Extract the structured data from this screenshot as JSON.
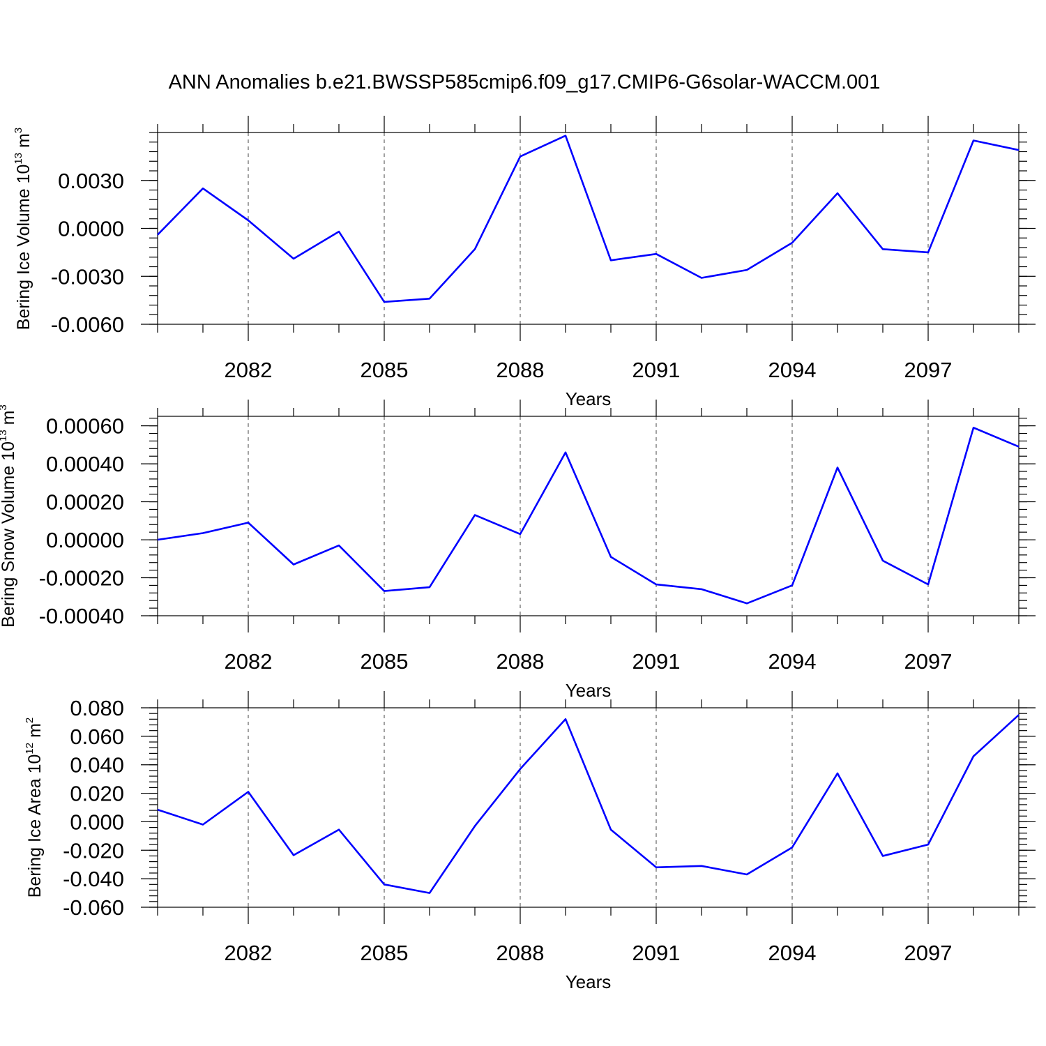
{
  "title": "ANN Anomalies b.e21.BWSSP585cmip6.f09_g17.CMIP6-G6solar-WACCM.001",
  "chart_data": [
    {
      "type": "line",
      "title": "ANN Anomalies b.e21.BWSSP585cmip6.f09_g17.CMIP6-G6solar-WACCM.001",
      "xlabel": "Years",
      "ylabel": {
        "base": "Bering Ice Volume 10",
        "exp1": "13",
        "unit": " m",
        "exp2": "3"
      },
      "x": [
        2080,
        2081,
        2082,
        2083,
        2084,
        2085,
        2086,
        2087,
        2088,
        2089,
        2090,
        2091,
        2092,
        2093,
        2094,
        2095,
        2096,
        2097,
        2098,
        2099
      ],
      "xlim": [
        2080,
        2099
      ],
      "xticks": [
        2082,
        2085,
        2088,
        2091,
        2094,
        2097
      ],
      "xtick_labels": [
        "2082",
        "2085",
        "2088",
        "2091",
        "2094",
        "2097"
      ],
      "ylim": [
        -0.006,
        0.006
      ],
      "yticks": [
        -0.006,
        -0.003,
        0.0,
        0.003
      ],
      "ytick_labels": [
        "-0.0060",
        "-0.0030",
        "0.0000",
        "0.0030"
      ],
      "minor_y_step": 0.0006,
      "grid": "vertical dashed at major x ticks",
      "series": [
        {
          "color": "#0000ff",
          "values": [
            -0.0004,
            0.0025,
            0.0005,
            -0.0019,
            -0.0002,
            -0.0046,
            -0.0044,
            -0.0013,
            0.0045,
            0.0058,
            -0.002,
            -0.0016,
            -0.0031,
            -0.0026,
            -0.0009,
            0.0022,
            -0.0013,
            -0.0015,
            0.0055,
            0.0049
          ]
        }
      ]
    },
    {
      "type": "line",
      "xlabel": "Years",
      "ylabel": {
        "base": "Bering Snow Volume 10",
        "exp1": "13",
        "unit": " m",
        "exp2": "3"
      },
      "x": [
        2080,
        2081,
        2082,
        2083,
        2084,
        2085,
        2086,
        2087,
        2088,
        2089,
        2090,
        2091,
        2092,
        2093,
        2094,
        2095,
        2096,
        2097,
        2098,
        2099
      ],
      "xlim": [
        2080,
        2099
      ],
      "xticks": [
        2082,
        2085,
        2088,
        2091,
        2094,
        2097
      ],
      "xtick_labels": [
        "2082",
        "2085",
        "2088",
        "2091",
        "2094",
        "2097"
      ],
      "ylim": [
        -0.0004,
        0.00065
      ],
      "yticks": [
        -0.0004,
        -0.0002,
        0.0,
        0.0002,
        0.0004,
        0.0006
      ],
      "ytick_labels": [
        "-0.00040",
        "-0.00020",
        "0.00000",
        "0.00020",
        "0.00040",
        "0.00060"
      ],
      "minor_y_step": 4e-05,
      "grid": "vertical dashed at major x ticks",
      "series": [
        {
          "color": "#0000ff",
          "values": [
            0.0,
            3.5e-05,
            9e-05,
            -0.00013,
            -3e-05,
            -0.00027,
            -0.00025,
            0.00013,
            3e-05,
            0.00046,
            -9e-05,
            -0.000235,
            -0.00026,
            -0.000335,
            -0.00024,
            0.00038,
            -0.00011,
            -0.000235,
            0.00059,
            0.00049
          ]
        }
      ]
    },
    {
      "type": "line",
      "xlabel": "Years",
      "ylabel": {
        "base": "Bering Ice Area 10",
        "exp1": "12",
        "unit": " m",
        "exp2": "2"
      },
      "x": [
        2080,
        2081,
        2082,
        2083,
        2084,
        2085,
        2086,
        2087,
        2088,
        2089,
        2090,
        2091,
        2092,
        2093,
        2094,
        2095,
        2096,
        2097,
        2098,
        2099
      ],
      "xlim": [
        2080,
        2099
      ],
      "xticks": [
        2082,
        2085,
        2088,
        2091,
        2094,
        2097
      ],
      "xtick_labels": [
        "2082",
        "2085",
        "2088",
        "2091",
        "2094",
        "2097"
      ],
      "ylim": [
        -0.06,
        0.08
      ],
      "yticks": [
        -0.06,
        -0.04,
        -0.02,
        0.0,
        0.02,
        0.04,
        0.06,
        0.08
      ],
      "ytick_labels": [
        "-0.060",
        "-0.040",
        "-0.020",
        "0.000",
        "0.020",
        "0.040",
        "0.060",
        "0.080"
      ],
      "minor_y_step": 0.004,
      "grid": "vertical dashed at major x ticks",
      "series": [
        {
          "color": "#0000ff",
          "values": [
            0.0085,
            -0.002,
            0.021,
            -0.0235,
            -0.0055,
            -0.044,
            -0.05,
            -0.003,
            0.037,
            0.072,
            -0.0055,
            -0.032,
            -0.031,
            -0.037,
            -0.018,
            0.034,
            -0.024,
            -0.016,
            0.046,
            0.075
          ]
        }
      ]
    }
  ]
}
